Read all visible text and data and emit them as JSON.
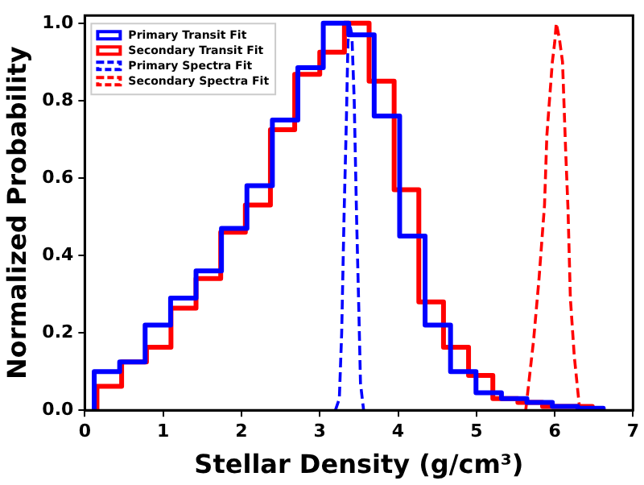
{
  "chart_data": {
    "type": "histogram",
    "xlabel": "Stellar Density (g/cm³)",
    "ylabel": "Normalized Probability",
    "xlim": [
      0,
      7
    ],
    "xticks": [
      0,
      1,
      2,
      3,
      4,
      5,
      6,
      7
    ],
    "ylim": [
      0,
      1.02
    ],
    "yticks": [
      {
        "value": 0,
        "label": "0.0"
      },
      {
        "value": 0.2,
        "label": "0.2"
      },
      {
        "value": 0.4,
        "label": "0.4"
      },
      {
        "value": 0.6,
        "label": "0.6"
      },
      {
        "value": 0.8,
        "label": "0.8"
      },
      {
        "value": 1,
        "label": "1.0"
      }
    ],
    "grid": false,
    "legend": "top left",
    "series": [
      {
        "name": "Primary Transit Fit",
        "color": "#0000ff",
        "type": "histogram",
        "line_style": "solid",
        "bins": [
          0.12,
          0.445,
          0.77,
          1.095,
          1.42,
          1.745,
          2.07,
          2.395,
          2.72,
          3.045,
          3.37,
          3.695,
          4.02,
          4.345,
          4.67,
          4.995,
          5.32,
          5.645,
          5.97,
          6.295,
          6.62
        ],
        "values": [
          0.1,
          0.125,
          0.22,
          0.29,
          0.36,
          0.47,
          0.58,
          0.75,
          0.885,
          1.0,
          0.97,
          0.76,
          0.45,
          0.22,
          0.1,
          0.045,
          0.03,
          0.02,
          0.01,
          0.005
        ]
      },
      {
        "name": "Secondary Transit Fit",
        "color": "#ff0000",
        "type": "histogram",
        "line_style": "solid",
        "bins": [
          0.155,
          0.47,
          0.787,
          1.1,
          1.42,
          1.735,
          2.05,
          2.37,
          2.68,
          3.0,
          3.315,
          3.63,
          3.95,
          4.265,
          4.58,
          4.9,
          5.21,
          5.53,
          5.845,
          6.16,
          6.48
        ],
        "values": [
          0.062,
          0.125,
          0.163,
          0.264,
          0.34,
          0.46,
          0.53,
          0.725,
          0.868,
          0.925,
          1.0,
          0.85,
          0.57,
          0.28,
          0.163,
          0.09,
          0.03,
          0.02,
          0.01,
          0.01
        ]
      },
      {
        "name": "Primary Spectra Fit",
        "color": "#0000ff",
        "type": "line",
        "line_style": "dashed",
        "x": [
          3.2,
          3.25,
          3.28,
          3.31,
          3.34,
          3.36,
          3.38,
          3.41,
          3.44,
          3.47,
          3.5,
          3.52,
          3.56
        ],
        "values": [
          0,
          0.03,
          0.2,
          0.5,
          0.75,
          0.95,
          1.0,
          0.97,
          0.8,
          0.5,
          0.25,
          0.07,
          0
        ]
      },
      {
        "name": "Secondary Spectra Fit",
        "color": "#ff0000",
        "type": "line",
        "line_style": "dashed",
        "x": [
          5.63,
          5.73,
          5.8,
          5.87,
          5.9,
          5.97,
          6.0,
          6.02,
          6.06,
          6.1,
          6.14,
          6.17,
          6.2,
          6.25,
          6.32
        ],
        "values": [
          0,
          0.18,
          0.34,
          0.53,
          0.71,
          0.9,
          0.95,
          1.0,
          0.96,
          0.9,
          0.67,
          0.52,
          0.29,
          0.14,
          0
        ]
      }
    ]
  }
}
